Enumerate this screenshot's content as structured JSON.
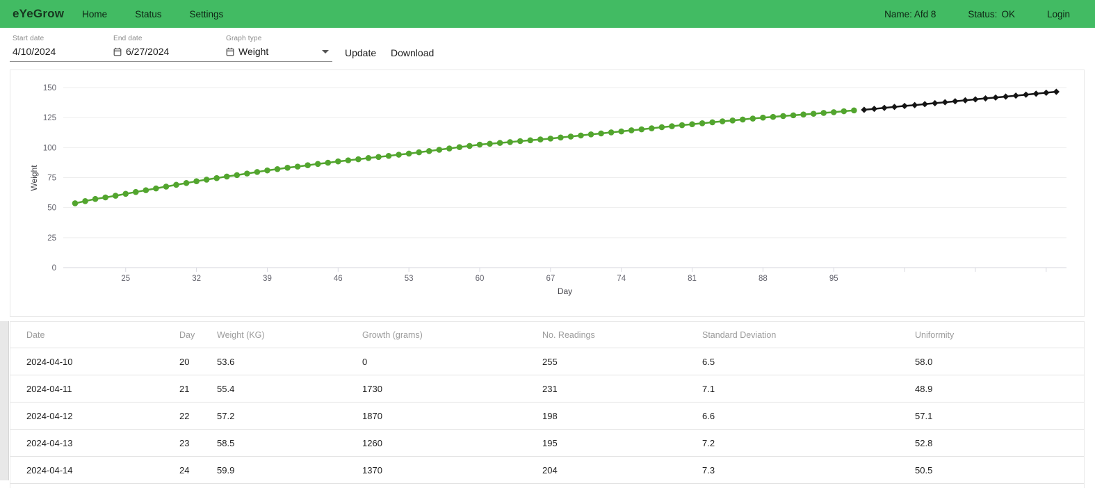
{
  "header": {
    "brand": "eYeGrow",
    "nav": [
      {
        "label": "Home"
      },
      {
        "label": "Status"
      },
      {
        "label": "Settings"
      }
    ],
    "user_name": "Name: Afd 8",
    "status_label": "Status:",
    "status_value": "OK",
    "login_label": "Login"
  },
  "filters": {
    "start_date": {
      "label": "Start date",
      "value": "4/10/2024"
    },
    "end_date": {
      "label": "End date",
      "value": "6/27/2024"
    },
    "graph_type": {
      "label": "Graph type",
      "value": "Weight"
    },
    "update_label": "Update",
    "download_label": "Download"
  },
  "chart_data": {
    "type": "line",
    "title": "",
    "xlabel": "Day",
    "ylabel": "Weight",
    "ylim": [
      0,
      150
    ],
    "xlim": [
      19,
      118.5
    ],
    "grid": "horizontal",
    "legend": "none",
    "yticks": [
      0,
      25,
      50,
      75,
      100,
      125,
      150
    ],
    "xticks_labeled": [
      25,
      32,
      39,
      46,
      53,
      60,
      67,
      74,
      81,
      88,
      95
    ],
    "xticks_unlabeled": [
      102,
      109,
      116
    ],
    "series": [
      {
        "name": "weight-measured",
        "color": "#52a52e",
        "marker": "circle",
        "x": [
          20,
          21,
          22,
          23,
          24,
          25,
          26,
          27,
          28,
          29,
          30,
          31,
          32,
          33,
          34,
          35,
          36,
          37,
          38,
          39,
          40,
          41,
          42,
          43,
          44,
          45,
          46,
          47,
          48,
          49,
          50,
          51,
          52,
          53,
          54,
          55,
          56,
          57,
          58,
          59,
          60,
          61,
          62,
          63,
          64,
          65,
          66,
          67,
          68,
          69,
          70,
          71,
          72,
          73,
          74,
          75,
          76,
          77,
          78,
          79,
          80,
          81,
          82,
          83,
          84,
          85,
          86,
          87,
          88,
          89,
          90,
          91,
          92,
          93,
          94,
          95,
          96,
          97
        ],
        "y": [
          53.6,
          55.4,
          57.2,
          58.5,
          59.9,
          61.5,
          63.0,
          64.5,
          66.0,
          67.5,
          69.0,
          70.5,
          72.0,
          73.3,
          74.6,
          75.9,
          77.1,
          78.4,
          79.7,
          81.0,
          82.1,
          83.2,
          84.2,
          85.3,
          86.4,
          87.4,
          88.5,
          89.4,
          90.3,
          91.3,
          92.2,
          93.1,
          94.1,
          95.0,
          96.1,
          97.1,
          98.2,
          99.3,
          100.4,
          101.4,
          102.5,
          103.2,
          103.9,
          104.6,
          105.4,
          106.1,
          106.8,
          107.5,
          108.4,
          109.2,
          110.1,
          111.0,
          111.8,
          112.7,
          113.5,
          114.4,
          115.2,
          116.1,
          117.0,
          117.8,
          118.7,
          119.5,
          120.3,
          121.1,
          121.9,
          122.6,
          123.4,
          124.2,
          125.0,
          125.6,
          126.3,
          126.9,
          127.6,
          128.2,
          128.9,
          129.5,
          130.3,
          131.0
        ]
      },
      {
        "name": "weight-projected",
        "color": "#141414",
        "marker": "diamond",
        "x": [
          98,
          99,
          100,
          101,
          102,
          103,
          104,
          105,
          106,
          107,
          108,
          109,
          110,
          111,
          112,
          113,
          114,
          115,
          116,
          117
        ],
        "y": [
          131.5,
          132.3,
          133.1,
          133.9,
          134.7,
          135.4,
          136.2,
          137.0,
          137.8,
          138.6,
          139.4,
          140.2,
          141.0,
          141.7,
          142.5,
          143.3,
          144.1,
          144.9,
          145.7,
          146.5
        ]
      }
    ]
  },
  "table": {
    "columns": [
      "Date",
      "Day",
      "Weight (KG)",
      "Growth (grams)",
      "No. Readings",
      "Standard Deviation",
      "Uniformity"
    ],
    "rows": [
      [
        "2024-04-10",
        "20",
        "53.6",
        "0",
        "255",
        "6.5",
        "58.0"
      ],
      [
        "2024-04-11",
        "21",
        "55.4",
        "1730",
        "231",
        "7.1",
        "48.9"
      ],
      [
        "2024-04-12",
        "22",
        "57.2",
        "1870",
        "198",
        "6.6",
        "57.1"
      ],
      [
        "2024-04-13",
        "23",
        "58.5",
        "1260",
        "195",
        "7.2",
        "52.8"
      ],
      [
        "2024-04-14",
        "24",
        "59.9",
        "1370",
        "204",
        "7.3",
        "50.5"
      ]
    ]
  },
  "colors": {
    "header_green": "#42bb63",
    "series_green": "#52a52e",
    "series_black": "#141414"
  }
}
